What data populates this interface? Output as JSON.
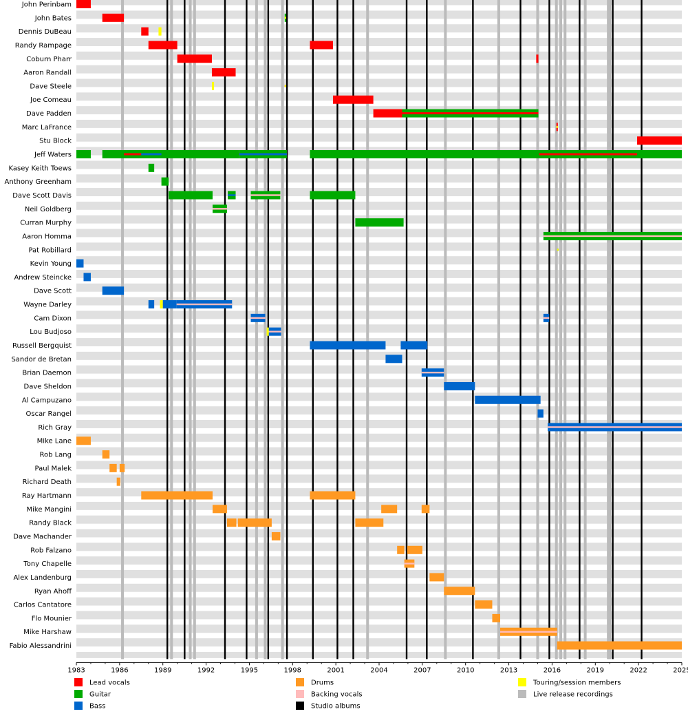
{
  "chart_data": {
    "type": "timeline",
    "title": "",
    "x_range": [
      1983,
      2025
    ],
    "x_ticks": [
      "1983",
      "1986",
      "1989",
      "1992",
      "1995",
      "1998",
      "2001",
      "2004",
      "2007",
      "2010",
      "2013",
      "2016",
      "2019",
      "2022",
      "2025"
    ],
    "colors": {
      "lead": "#ff0000",
      "guitar": "#00aa00",
      "bass": "#0066cc",
      "drums": "#ff9922",
      "backing": "#ffbbbb",
      "touring": "#ffff00",
      "live": "#bbbbbb",
      "studio": "#000000"
    },
    "legend": [
      {
        "key": "lead",
        "label": "Lead vocals"
      },
      {
        "key": "guitar",
        "label": "Guitar"
      },
      {
        "key": "bass",
        "label": "Bass"
      },
      {
        "key": "drums",
        "label": "Drums"
      },
      {
        "key": "backing",
        "label": "Backing vocals"
      },
      {
        "key": "studio",
        "label": "Studio albums"
      },
      {
        "key": "touring",
        "label": "Touring/session members"
      },
      {
        "key": "live",
        "label": "Live release recordings"
      }
    ],
    "studio_albums": [
      1989.3,
      1990.5,
      1993.3,
      1994.8,
      1996.3,
      1997.6,
      1999.4,
      2001.1,
      2002.2,
      2005.9,
      2007.3,
      2010.5,
      2013.8,
      2015.8,
      2017.9,
      2020.2,
      2022.2
    ],
    "live_recordings": [
      1986.2,
      1989.6,
      1990.9,
      1991.2,
      1995.5,
      1996.1,
      1997.3,
      2003.2,
      2008.6,
      2012.3,
      2015.0,
      2016.3,
      2016.6,
      2016.9,
      2018.3,
      2019.9,
      2020.0
    ],
    "members": [
      {
        "name": "John Perinbam",
        "bars": [
          {
            "r": "lead",
            "s": 1983,
            "e": 1984
          }
        ]
      },
      {
        "name": "John Bates",
        "bars": [
          {
            "r": "lead",
            "s": 1984.8,
            "e": 1986.3
          },
          {
            "r": "guitar",
            "s": 1997.45,
            "e": 1997.55
          },
          {
            "r": "touring",
            "s": 1997.45,
            "e": 1997.55,
            "thin": true
          }
        ]
      },
      {
        "name": "Dennis DuBeau",
        "bars": [
          {
            "r": "lead",
            "s": 1987.5,
            "e": 1988
          },
          {
            "r": "touring",
            "s": 1988.7,
            "e": 1988.9
          }
        ]
      },
      {
        "name": "Randy Rampage",
        "bars": [
          {
            "r": "lead",
            "s": 1988,
            "e": 1990
          },
          {
            "r": "lead",
            "s": 1999.2,
            "e": 2000.8
          }
        ]
      },
      {
        "name": "Coburn Pharr",
        "bars": [
          {
            "r": "lead",
            "s": 1990,
            "e": 1992.4
          },
          {
            "r": "lead",
            "s": 2014.9,
            "e": 2015.05
          }
        ]
      },
      {
        "name": "Aaron Randall",
        "bars": [
          {
            "r": "lead",
            "s": 1992.4,
            "e": 1994.05
          }
        ]
      },
      {
        "name": "Dave Steele",
        "bars": [
          {
            "r": "touring",
            "s": 1992.4,
            "e": 1992.55
          },
          {
            "r": "lead",
            "s": 1997.45,
            "e": 1997.55,
            "thin": true
          },
          {
            "r": "touring",
            "s": 1997.45,
            "e": 1997.55,
            "thin": true
          }
        ]
      },
      {
        "name": "Joe Comeau",
        "bars": [
          {
            "r": "lead",
            "s": 2000.8,
            "e": 2003.6
          }
        ]
      },
      {
        "name": "Dave Padden",
        "bars": [
          {
            "r": "lead",
            "s": 2003.6,
            "e": 2005.6
          },
          {
            "r": "guitar",
            "s": 2005.6,
            "e": 2015.05
          },
          {
            "r": "lead",
            "s": 2005.6,
            "e": 2015.05,
            "thin": true
          }
        ]
      },
      {
        "name": "Marc LaFrance",
        "bars": [
          {
            "r": "lead",
            "s": 2016.3,
            "e": 2016.4
          },
          {
            "r": "touring",
            "s": 2016.3,
            "e": 2016.4,
            "thin": true
          }
        ]
      },
      {
        "name": "Stu Block",
        "bars": [
          {
            "r": "lead",
            "s": 2021.9,
            "e": 2025
          }
        ]
      },
      {
        "name": "Jeff Waters",
        "bars": [
          {
            "r": "guitar",
            "s": 1983,
            "e": 1984
          },
          {
            "r": "guitar",
            "s": 1984.8,
            "e": 1994.3
          },
          {
            "r": "lead",
            "s": 1986.3,
            "e": 1987.5,
            "thin": true
          },
          {
            "r": "bass",
            "s": 1987.5,
            "e": 1988.9,
            "thin": true
          },
          {
            "r": "guitar",
            "s": 1994.3,
            "e": 1997.6
          },
          {
            "r": "lead",
            "s": 1994.3,
            "e": 1997.6,
            "thin": true
          },
          {
            "r": "bass",
            "s": 1994.3,
            "e": 1997.6,
            "thin": true
          },
          {
            "r": "guitar",
            "s": 1999.2,
            "e": 2025
          },
          {
            "r": "lead",
            "s": 2015.1,
            "e": 2021.9,
            "thin": true
          }
        ]
      },
      {
        "name": "Kasey Keith Toews",
        "bars": [
          {
            "r": "guitar",
            "s": 1988,
            "e": 1988.4
          }
        ]
      },
      {
        "name": "Anthony Greenham",
        "bars": [
          {
            "r": "guitar",
            "s": 1988.9,
            "e": 1989.4
          }
        ]
      },
      {
        "name": "Dave Scott Davis",
        "bars": [
          {
            "r": "guitar",
            "s": 1989.4,
            "e": 1992.45
          },
          {
            "r": "guitar",
            "s": 1993.5,
            "e": 1994.05,
            "split": "bass"
          },
          {
            "r": "guitar",
            "s": 1995.1,
            "e": 1997.15,
            "split": "backing"
          },
          {
            "r": "guitar",
            "s": 1999.2,
            "e": 2002.35
          }
        ]
      },
      {
        "name": "Neil Goldberg",
        "bars": [
          {
            "r": "guitar",
            "s": 1992.45,
            "e": 1993.45,
            "split": "backing"
          }
        ]
      },
      {
        "name": "Curran Murphy",
        "bars": [
          {
            "r": "guitar",
            "s": 2002.35,
            "e": 2005.7
          }
        ]
      },
      {
        "name": "Aaron Homma",
        "bars": [
          {
            "r": "guitar",
            "s": 2015.4,
            "e": 2025,
            "split": "backing"
          }
        ]
      },
      {
        "name": "Pat Robillard",
        "bars": [
          {
            "r": "guitar",
            "s": 2016.35,
            "e": 2016.45,
            "thin": true
          },
          {
            "r": "touring",
            "s": 2016.35,
            "e": 2016.45,
            "thin": true
          }
        ]
      },
      {
        "name": "Kevin Young",
        "bars": [
          {
            "r": "bass",
            "s": 1983,
            "e": 1983.5
          }
        ]
      },
      {
        "name": "Andrew Steincke",
        "bars": [
          {
            "r": "bass",
            "s": 1983.5,
            "e": 1984
          }
        ]
      },
      {
        "name": "Dave Scott",
        "bars": [
          {
            "r": "bass",
            "s": 1984.8,
            "e": 1986.3
          }
        ]
      },
      {
        "name": "Wayne Darley",
        "bars": [
          {
            "r": "bass",
            "s": 1988,
            "e": 1988.4
          },
          {
            "r": "touring",
            "s": 1988.8,
            "e": 1989
          },
          {
            "r": "bass",
            "s": 1989,
            "e": 1989.95
          },
          {
            "r": "bass",
            "s": 1989.95,
            "e": 1993.8,
            "split": "backing"
          }
        ]
      },
      {
        "name": "Cam Dixon",
        "bars": [
          {
            "r": "bass",
            "s": 1995.1,
            "e": 1996.1,
            "split": "backing"
          },
          {
            "r": "bass",
            "s": 2015.4,
            "e": 2015.8,
            "split": "backing"
          }
        ]
      },
      {
        "name": "Lou Budjoso",
        "bars": [
          {
            "r": "bass",
            "s": 1996.3,
            "e": 1997.2,
            "split": "backing"
          },
          {
            "r": "touring",
            "s": 1996.2,
            "e": 1996.35
          }
        ]
      },
      {
        "name": "Russell Bergquist",
        "bars": [
          {
            "r": "bass",
            "s": 1999.2,
            "e": 2004.45
          },
          {
            "r": "bass",
            "s": 2005.5,
            "e": 2007.35
          }
        ]
      },
      {
        "name": "Sandor de Bretan",
        "bars": [
          {
            "r": "bass",
            "s": 2004.45,
            "e": 2005.6
          }
        ]
      },
      {
        "name": "Brian Daemon",
        "bars": [
          {
            "r": "bass",
            "s": 2006.95,
            "e": 2008.5,
            "split": "backing"
          }
        ]
      },
      {
        "name": "Dave Sheldon",
        "bars": [
          {
            "r": "bass",
            "s": 2008.5,
            "e": 2010.65
          }
        ]
      },
      {
        "name": "Al Campuzano",
        "bars": [
          {
            "r": "bass",
            "s": 2010.65,
            "e": 2015.2
          }
        ]
      },
      {
        "name": "Oscar Rangel",
        "bars": [
          {
            "r": "bass",
            "s": 2015.0,
            "e": 2015.4
          }
        ]
      },
      {
        "name": "Rich Gray",
        "bars": [
          {
            "r": "bass",
            "s": 2015.7,
            "e": 2025,
            "split": "backing"
          }
        ]
      },
      {
        "name": "Mike Lane",
        "bars": [
          {
            "r": "drums",
            "s": 1983,
            "e": 1984
          }
        ]
      },
      {
        "name": "Rob Lang",
        "bars": [
          {
            "r": "drums",
            "s": 1984.8,
            "e": 1985.3
          }
        ]
      },
      {
        "name": "Paul Malek",
        "bars": [
          {
            "r": "drums",
            "s": 1985.3,
            "e": 1985.8
          },
          {
            "r": "drums",
            "s": 1986,
            "e": 1986.35
          }
        ]
      },
      {
        "name": "Richard Death",
        "bars": [
          {
            "r": "drums",
            "s": 1985.8,
            "e": 1986.05
          }
        ]
      },
      {
        "name": "Ray Hartmann",
        "bars": [
          {
            "r": "drums",
            "s": 1987.5,
            "e": 1992.45
          },
          {
            "r": "drums",
            "s": 1999.2,
            "e": 2002.35
          }
        ]
      },
      {
        "name": "Mike Mangini",
        "bars": [
          {
            "r": "drums",
            "s": 1992.45,
            "e": 1993.45
          },
          {
            "r": "drums",
            "s": 2004.15,
            "e": 2005.25
          },
          {
            "r": "drums",
            "s": 2006.95,
            "e": 2007.5
          }
        ]
      },
      {
        "name": "Randy Black",
        "bars": [
          {
            "r": "drums",
            "s": 1993.45,
            "e": 1994.1
          },
          {
            "r": "drums",
            "s": 1994.2,
            "e": 1996.55
          },
          {
            "r": "drums",
            "s": 2002.35,
            "e": 2004.3
          }
        ]
      },
      {
        "name": "Dave Machander",
        "bars": [
          {
            "r": "drums",
            "s": 1996.55,
            "e": 1997.15
          }
        ]
      },
      {
        "name": "Rob Falzano",
        "bars": [
          {
            "r": "drums",
            "s": 2005.25,
            "e": 2005.75
          },
          {
            "r": "drums",
            "s": 2005.95,
            "e": 2007
          }
        ]
      },
      {
        "name": "Tony Chapelle",
        "bars": [
          {
            "r": "drums",
            "s": 2005.75,
            "e": 2006.45,
            "split": "backing"
          }
        ]
      },
      {
        "name": "Alex Landenburg",
        "bars": [
          {
            "r": "drums",
            "s": 2007.5,
            "e": 2008.5
          }
        ]
      },
      {
        "name": "Ryan Ahoff",
        "bars": [
          {
            "r": "drums",
            "s": 2008.5,
            "e": 2010.65
          }
        ]
      },
      {
        "name": "Carlos Cantatore",
        "bars": [
          {
            "r": "drums",
            "s": 2010.65,
            "e": 2011.85
          }
        ]
      },
      {
        "name": "Flo Mounier",
        "bars": [
          {
            "r": "drums",
            "s": 2011.85,
            "e": 2012.4
          }
        ]
      },
      {
        "name": "Mike Harshaw",
        "bars": [
          {
            "r": "drums",
            "s": 2012.4,
            "e": 2016.35,
            "split": "backing"
          }
        ]
      },
      {
        "name": "Fabio Alessandrini",
        "bars": [
          {
            "r": "drums",
            "s": 2016.35,
            "e": 2025
          }
        ]
      }
    ]
  }
}
